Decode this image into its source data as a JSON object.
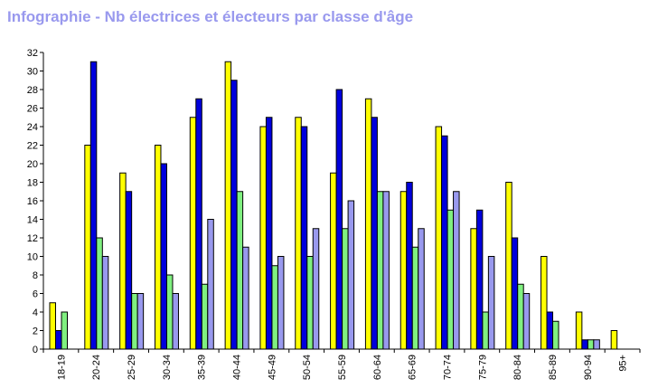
{
  "title": "Infographie - Nb électrices et électeurs par classe d'âge",
  "chart_data": {
    "type": "bar",
    "title": "Infographie - Nb électrices et électeurs par classe d'âge",
    "xlabel": "",
    "ylabel": "",
    "ylim": [
      0,
      32
    ],
    "yticks": [
      0,
      2,
      4,
      6,
      8,
      10,
      12,
      14,
      16,
      18,
      20,
      22,
      24,
      26,
      28,
      30,
      32
    ],
    "grid": false,
    "categories": [
      "18-19",
      "20-24",
      "25-29",
      "30-34",
      "35-39",
      "40-44",
      "45-49",
      "50-54",
      "55-59",
      "60-64",
      "65-69",
      "70-74",
      "75-79",
      "80-84",
      "85-89",
      "90-94",
      "95+"
    ],
    "series": [
      {
        "color": "#ffff00",
        "values": [
          5,
          22,
          19,
          22,
          25,
          31,
          24,
          25,
          19,
          27,
          17,
          24,
          13,
          18,
          10,
          4,
          2
        ]
      },
      {
        "color": "#0000dd",
        "values": [
          2,
          31,
          17,
          20,
          27,
          29,
          25,
          24,
          28,
          25,
          18,
          23,
          15,
          12,
          4,
          1,
          0
        ]
      },
      {
        "color": "#80f080",
        "values": [
          4,
          12,
          6,
          8,
          7,
          17,
          9,
          10,
          13,
          17,
          11,
          15,
          4,
          7,
          3,
          1,
          0
        ]
      },
      {
        "color": "#9999ee",
        "values": [
          0,
          10,
          6,
          6,
          14,
          11,
          10,
          13,
          16,
          17,
          13,
          17,
          10,
          6,
          0,
          1,
          0
        ]
      }
    ]
  }
}
